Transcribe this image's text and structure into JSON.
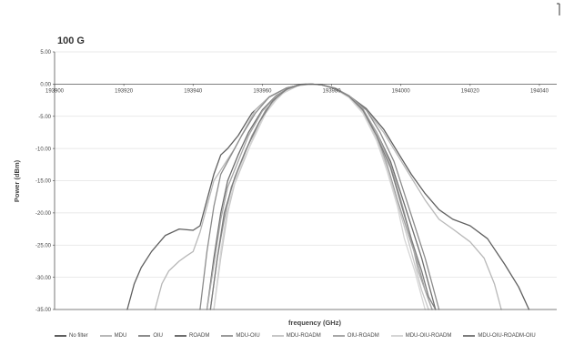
{
  "chart_data": {
    "type": "line",
    "title": "100 G",
    "xlabel": "frequency (GHz)",
    "ylabel": "Power (dBm)",
    "xlim": [
      193900,
      194045
    ],
    "ylim": [
      -35,
      5
    ],
    "x_ticks": [
      "193900",
      "193920",
      "193940",
      "193960",
      "193980",
      "194000",
      "194020",
      "194040"
    ],
    "y_ticks": [
      "5.00",
      "0.00",
      "-5.00",
      "-10.00",
      "-15.00",
      "-20.00",
      "-25.00",
      "-30.00",
      "-35.00"
    ],
    "grid": "horizontal",
    "legend_position": "bottom",
    "series": [
      {
        "name": "No filter",
        "color": "#5f5f5f",
        "points": [
          [
            193921,
            -35
          ],
          [
            193923,
            -31
          ],
          [
            193925,
            -28.5
          ],
          [
            193928,
            -26
          ],
          [
            193932,
            -23.5
          ],
          [
            193936,
            -22.5
          ],
          [
            193940,
            -22.7
          ],
          [
            193942,
            -22
          ],
          [
            193944,
            -18
          ],
          [
            193946,
            -14
          ],
          [
            193948,
            -11
          ],
          [
            193950,
            -10
          ],
          [
            193953,
            -8
          ],
          [
            193957,
            -4.5
          ],
          [
            193962,
            -2
          ],
          [
            193967,
            -0.6
          ],
          [
            193971,
            -0.05
          ],
          [
            193974,
            0
          ],
          [
            193977,
            -0.1
          ],
          [
            193981,
            -0.7
          ],
          [
            193985,
            -1.8
          ],
          [
            193990,
            -3.8
          ],
          [
            193995,
            -7
          ],
          [
            193999,
            -10.5
          ],
          [
            194003,
            -14
          ],
          [
            194007,
            -17
          ],
          [
            194011,
            -19.5
          ],
          [
            194015,
            -21
          ],
          [
            194020,
            -22
          ],
          [
            194025,
            -24
          ],
          [
            194030,
            -28
          ],
          [
            194034,
            -31.5
          ],
          [
            194037,
            -35
          ]
        ]
      },
      {
        "name": "MDU",
        "color": "#b8b8b8",
        "points": [
          [
            193929,
            -35
          ],
          [
            193931,
            -31
          ],
          [
            193933,
            -29
          ],
          [
            193936,
            -27.5
          ],
          [
            193938,
            -26.7
          ],
          [
            193940,
            -26
          ],
          [
            193942,
            -23
          ],
          [
            193944,
            -19
          ],
          [
            193946,
            -15
          ],
          [
            193949,
            -12.5
          ],
          [
            193952,
            -10
          ],
          [
            193955,
            -7
          ],
          [
            193958,
            -4
          ],
          [
            193962,
            -2
          ],
          [
            193967,
            -0.6
          ],
          [
            193971,
            -0.05
          ],
          [
            193974,
            0
          ],
          [
            193977,
            -0.1
          ],
          [
            193981,
            -0.7
          ],
          [
            193985,
            -1.8
          ],
          [
            193990,
            -4
          ],
          [
            193995,
            -7.5
          ],
          [
            193999,
            -11
          ],
          [
            194003,
            -14.5
          ],
          [
            194007,
            -18
          ],
          [
            194011,
            -21
          ],
          [
            194015,
            -22.5
          ],
          [
            194020,
            -24.5
          ],
          [
            194024,
            -27
          ],
          [
            194027,
            -31
          ],
          [
            194029,
            -35
          ]
        ]
      },
      {
        "name": "OIU",
        "color": "#8c8c8c",
        "points": [
          [
            193942,
            -35
          ],
          [
            193944,
            -26
          ],
          [
            193946,
            -19
          ],
          [
            193948,
            -14
          ],
          [
            193951,
            -11
          ],
          [
            193954,
            -8
          ],
          [
            193958,
            -4.5
          ],
          [
            193962,
            -2
          ],
          [
            193967,
            -0.6
          ],
          [
            193971,
            -0.05
          ],
          [
            193974,
            0
          ],
          [
            193977,
            -0.1
          ],
          [
            193981,
            -0.7
          ],
          [
            193985,
            -1.8
          ],
          [
            193990,
            -4
          ],
          [
            193994,
            -7.5
          ],
          [
            193998,
            -12
          ],
          [
            194001,
            -17
          ],
          [
            194004,
            -22
          ],
          [
            194007,
            -27
          ],
          [
            194009,
            -31
          ],
          [
            194011,
            -35
          ]
        ]
      },
      {
        "name": "ROADM",
        "color": "#6e6e6e",
        "points": [
          [
            193944,
            -35
          ],
          [
            193946,
            -27
          ],
          [
            193948,
            -20
          ],
          [
            193950,
            -15
          ],
          [
            193953,
            -11
          ],
          [
            193956,
            -7.5
          ],
          [
            193960,
            -4
          ],
          [
            193964,
            -1.8
          ],
          [
            193968,
            -0.5
          ],
          [
            193972,
            -0.05
          ],
          [
            193974,
            0
          ],
          [
            193977,
            -0.1
          ],
          [
            193981,
            -0.7
          ],
          [
            193985,
            -1.9
          ],
          [
            193989,
            -4
          ],
          [
            193993,
            -7.5
          ],
          [
            193997,
            -12
          ],
          [
            194000,
            -17
          ],
          [
            194003,
            -22
          ],
          [
            194006,
            -27
          ],
          [
            194008,
            -31
          ],
          [
            194010,
            -35
          ]
        ]
      },
      {
        "name": "MDU-OIU",
        "color": "#9a9a9a",
        "points": [
          [
            193945,
            -35
          ],
          [
            193947,
            -27
          ],
          [
            193949,
            -21
          ],
          [
            193951,
            -16
          ],
          [
            193954,
            -12
          ],
          [
            193957,
            -8
          ],
          [
            193961,
            -4
          ],
          [
            193965,
            -1.7
          ],
          [
            193969,
            -0.4
          ],
          [
            193972,
            -0.05
          ],
          [
            193974,
            0
          ],
          [
            193977,
            -0.1
          ],
          [
            193981,
            -0.7
          ],
          [
            193985,
            -2
          ],
          [
            193989,
            -4.2
          ],
          [
            193993,
            -8
          ],
          [
            193996,
            -12.5
          ],
          [
            193999,
            -18
          ],
          [
            194002,
            -23
          ],
          [
            194005,
            -28
          ],
          [
            194007,
            -32
          ],
          [
            194009,
            -35
          ]
        ]
      },
      {
        "name": "MDU-ROADM",
        "color": "#c7c7c7",
        "points": [
          [
            193946,
            -35
          ],
          [
            193948,
            -27
          ],
          [
            193950,
            -20
          ],
          [
            193952,
            -15.5
          ],
          [
            193955,
            -11.5
          ],
          [
            193958,
            -7.5
          ],
          [
            193962,
            -3.5
          ],
          [
            193966,
            -1.4
          ],
          [
            193970,
            -0.3
          ],
          [
            193974,
            0
          ],
          [
            193977,
            -0.1
          ],
          [
            193981,
            -0.7
          ],
          [
            193985,
            -2
          ],
          [
            193989,
            -4.3
          ],
          [
            193993,
            -8.5
          ],
          [
            193996,
            -13
          ],
          [
            193999,
            -18.5
          ],
          [
            194002,
            -24
          ],
          [
            194004,
            -28
          ],
          [
            194006,
            -32
          ],
          [
            194008,
            -35
          ]
        ]
      },
      {
        "name": "OIU-ROADM",
        "color": "#a7a7a7",
        "points": [
          [
            193944,
            -35
          ],
          [
            193946,
            -28
          ],
          [
            193948,
            -21
          ],
          [
            193950,
            -16
          ],
          [
            193953,
            -12
          ],
          [
            193956,
            -8
          ],
          [
            193960,
            -4.2
          ],
          [
            193964,
            -1.9
          ],
          [
            193968,
            -0.5
          ],
          [
            193972,
            -0.05
          ],
          [
            193974,
            0
          ],
          [
            193977,
            -0.1
          ],
          [
            193981,
            -0.6
          ],
          [
            193985,
            -1.8
          ],
          [
            193989,
            -3.8
          ],
          [
            193993,
            -7.5
          ],
          [
            193997,
            -12.5
          ],
          [
            194000,
            -18
          ],
          [
            194003,
            -24
          ],
          [
            194005,
            -29
          ],
          [
            194007,
            -32
          ],
          [
            194009,
            -35
          ]
        ]
      },
      {
        "name": "MDU-OIU-ROADM",
        "color": "#d5d5d5",
        "points": [
          [
            193946,
            -35
          ],
          [
            193948,
            -26
          ],
          [
            193950,
            -19
          ],
          [
            193953,
            -13.5
          ],
          [
            193957,
            -9
          ],
          [
            193961,
            -4.5
          ],
          [
            193965,
            -1.8
          ],
          [
            193969,
            -0.4
          ],
          [
            193973,
            0
          ],
          [
            193977,
            -0.1
          ],
          [
            193981,
            -0.8
          ],
          [
            193985,
            -2.1
          ],
          [
            193989,
            -4.5
          ],
          [
            193993,
            -8.8
          ],
          [
            193996,
            -13.5
          ],
          [
            193999,
            -19
          ],
          [
            194001,
            -24
          ],
          [
            194004,
            -29
          ],
          [
            194006,
            -33
          ],
          [
            194007,
            -35
          ]
        ]
      },
      {
        "name": "MDU-OIU-ROADM-OIU",
        "color": "#7d7d7d",
        "points": [
          [
            193945,
            -35
          ],
          [
            193947,
            -27
          ],
          [
            193949,
            -20
          ],
          [
            193952,
            -14.5
          ],
          [
            193955,
            -10.5
          ],
          [
            193959,
            -6
          ],
          [
            193963,
            -2.6
          ],
          [
            193967,
            -0.8
          ],
          [
            193971,
            -0.1
          ],
          [
            193974,
            0
          ],
          [
            193977,
            -0.1
          ],
          [
            193981,
            -0.7
          ],
          [
            193985,
            -1.9
          ],
          [
            193989,
            -4
          ],
          [
            193993,
            -8
          ],
          [
            193997,
            -13
          ],
          [
            194000,
            -18.5
          ],
          [
            194003,
            -24
          ],
          [
            194006,
            -29
          ],
          [
            194008,
            -33
          ],
          [
            194010,
            -35
          ]
        ]
      }
    ]
  }
}
